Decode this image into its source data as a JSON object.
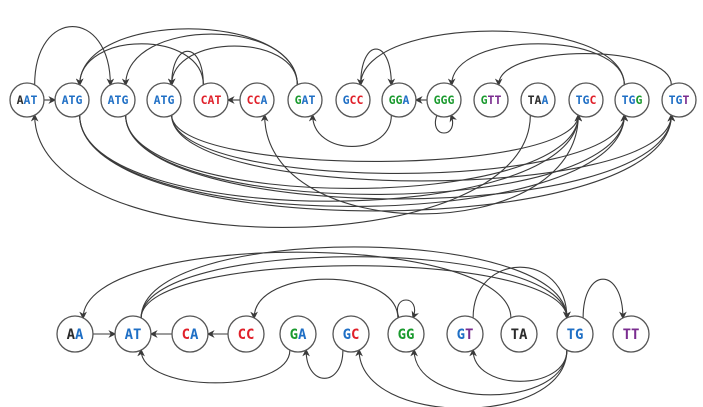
{
  "colors": {
    "A": "#1f6fc5",
    "C": "#e0202a",
    "G": "#1a9a2e",
    "T": "#7a2c8f",
    "stroke": "#3a3a3a"
  },
  "graph_top": {
    "nodes": [
      {
        "id": "AAT",
        "label": "AAT",
        "letter_colors": [
          "#2b2b2b",
          "#1f6fc5",
          "#1f6fc5"
        ]
      },
      {
        "id": "ATG1",
        "label": "ATG",
        "letter_colors": [
          "#1f6fc5",
          "#1f6fc5",
          "#1f6fc5"
        ]
      },
      {
        "id": "ATG2",
        "label": "ATG",
        "letter_colors": [
          "#1f6fc5",
          "#1f6fc5",
          "#1f6fc5"
        ]
      },
      {
        "id": "ATG3",
        "label": "ATG",
        "letter_colors": [
          "#1f6fc5",
          "#1f6fc5",
          "#1f6fc5"
        ]
      },
      {
        "id": "CAT",
        "label": "CAT",
        "letter_colors": [
          "#e0202a",
          "#e0202a",
          "#e0202a"
        ]
      },
      {
        "id": "CCA",
        "label": "CCA",
        "letter_colors": [
          "#e0202a",
          "#e0202a",
          "#1f6fc5"
        ]
      },
      {
        "id": "GAT",
        "label": "GAT",
        "letter_colors": [
          "#1a9a2e",
          "#1f6fc5",
          "#1f6fc5"
        ]
      },
      {
        "id": "GCC",
        "label": "GCC",
        "letter_colors": [
          "#1f6fc5",
          "#e0202a",
          "#e0202a"
        ]
      },
      {
        "id": "GGA",
        "label": "GGA",
        "letter_colors": [
          "#1a9a2e",
          "#1a9a2e",
          "#1f6fc5"
        ]
      },
      {
        "id": "GGG",
        "label": "GGG",
        "letter_colors": [
          "#1a9a2e",
          "#1a9a2e",
          "#1a9a2e"
        ]
      },
      {
        "id": "GTT",
        "label": "GTT",
        "letter_colors": [
          "#1a9a2e",
          "#7a2c8f",
          "#7a2c8f"
        ]
      },
      {
        "id": "TAA",
        "label": "TAA",
        "letter_colors": [
          "#2b2b2b",
          "#2b2b2b",
          "#1f6fc5"
        ]
      },
      {
        "id": "TGC",
        "label": "TGC",
        "letter_colors": [
          "#1f6fc5",
          "#1f6fc5",
          "#e0202a"
        ]
      },
      {
        "id": "TGG",
        "label": "TGG",
        "letter_colors": [
          "#1f6fc5",
          "#1f6fc5",
          "#1a9a2e"
        ]
      },
      {
        "id": "TGT",
        "label": "TGT",
        "letter_colors": [
          "#1f6fc5",
          "#1f6fc5",
          "#7a2c8f"
        ]
      }
    ],
    "edges": [
      {
        "from": "AAT",
        "to": "ATG1"
      },
      {
        "from": "CCA",
        "to": "CAT"
      },
      {
        "from": "GGG",
        "to": "GGA"
      },
      {
        "from": "GGG",
        "to": "GGG"
      },
      {
        "from": "CAT",
        "to": "ATG1"
      },
      {
        "from": "CAT",
        "to": "ATG3"
      },
      {
        "from": "GAT",
        "to": "ATG1"
      },
      {
        "from": "GAT",
        "to": "ATG2"
      },
      {
        "from": "GAT",
        "to": "ATG3"
      },
      {
        "from": "AAT",
        "to": "ATG2"
      },
      {
        "from": "GCC",
        "to": "GGA"
      },
      {
        "from": "TGG",
        "to": "GGG"
      },
      {
        "from": "TGT",
        "to": "GTT"
      },
      {
        "from": "TGG",
        "to": "GCC"
      },
      {
        "from": "GGA",
        "to": "GAT"
      },
      {
        "from": "ATG1",
        "to": "TGC"
      },
      {
        "from": "ATG1",
        "to": "TGG"
      },
      {
        "from": "ATG1",
        "to": "TGT"
      },
      {
        "from": "ATG2",
        "to": "TGC"
      },
      {
        "from": "ATG2",
        "to": "TGG"
      },
      {
        "from": "ATG2",
        "to": "TGT"
      },
      {
        "from": "ATG3",
        "to": "TGC"
      },
      {
        "from": "ATG3",
        "to": "TGG"
      },
      {
        "from": "ATG3",
        "to": "TGT"
      },
      {
        "from": "TAA",
        "to": "AAT"
      },
      {
        "from": "TGC",
        "to": "CCA"
      }
    ]
  },
  "graph_bottom": {
    "nodes": [
      {
        "id": "AA",
        "label": "AA",
        "letter_colors": [
          "#2b2b2b",
          "#1f6fc5"
        ]
      },
      {
        "id": "AT",
        "label": "AT",
        "letter_colors": [
          "#1f6fc5",
          "#1f6fc5"
        ]
      },
      {
        "id": "CA",
        "label": "CA",
        "letter_colors": [
          "#e0202a",
          "#1f6fc5"
        ]
      },
      {
        "id": "CC",
        "label": "CC",
        "letter_colors": [
          "#e0202a",
          "#e0202a"
        ]
      },
      {
        "id": "GA",
        "label": "GA",
        "letter_colors": [
          "#1a9a2e",
          "#1f6fc5"
        ]
      },
      {
        "id": "GC",
        "label": "GC",
        "letter_colors": [
          "#1f6fc5",
          "#e0202a"
        ]
      },
      {
        "id": "GG",
        "label": "GG",
        "letter_colors": [
          "#1a9a2e",
          "#1a9a2e"
        ]
      },
      {
        "id": "GT",
        "label": "GT",
        "letter_colors": [
          "#1f6fc5",
          "#7a2c8f"
        ]
      },
      {
        "id": "TA",
        "label": "TA",
        "letter_colors": [
          "#2b2b2b",
          "#2b2b2b"
        ]
      },
      {
        "id": "TG",
        "label": "TG",
        "letter_colors": [
          "#1f6fc5",
          "#1f6fc5"
        ]
      },
      {
        "id": "TT",
        "label": "TT",
        "letter_colors": [
          "#7a2c8f",
          "#7a2c8f"
        ]
      }
    ],
    "edges": [
      {
        "from": "AA",
        "to": "AT"
      },
      {
        "from": "CA",
        "to": "AT"
      },
      {
        "from": "CC",
        "to": "CA"
      },
      {
        "from": "GG",
        "to": "GG"
      },
      {
        "from": "AT",
        "to": "TG"
      },
      {
        "from": "AT",
        "to": "TG"
      },
      {
        "from": "AT",
        "to": "TG"
      },
      {
        "from": "TA",
        "to": "AA"
      },
      {
        "from": "TG",
        "to": "TT"
      },
      {
        "from": "GG",
        "to": "CC"
      },
      {
        "from": "GT",
        "to": "TG"
      },
      {
        "from": "GA",
        "to": "AT"
      },
      {
        "from": "GC",
        "to": "GA"
      },
      {
        "from": "TG",
        "to": "GC"
      },
      {
        "from": "TG",
        "to": "GG"
      },
      {
        "from": "TG",
        "to": "GT"
      }
    ]
  }
}
